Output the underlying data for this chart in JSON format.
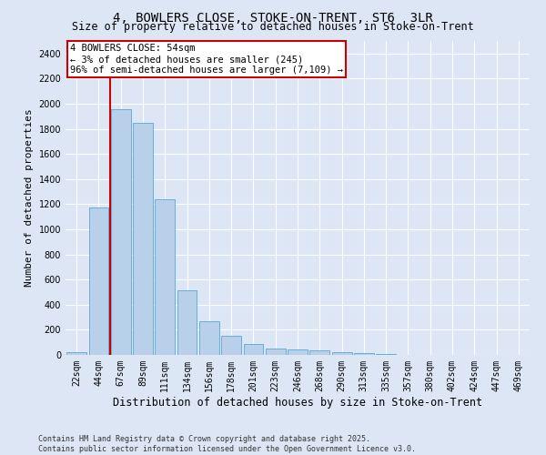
{
  "title": "4, BOWLERS CLOSE, STOKE-ON-TRENT, ST6  3LR",
  "subtitle": "Size of property relative to detached houses in Stoke-on-Trent",
  "xlabel": "Distribution of detached houses by size in Stoke-on-Trent",
  "ylabel": "Number of detached properties",
  "categories": [
    "22sqm",
    "44sqm",
    "67sqm",
    "89sqm",
    "111sqm",
    "134sqm",
    "156sqm",
    "178sqm",
    "201sqm",
    "223sqm",
    "246sqm",
    "268sqm",
    "290sqm",
    "313sqm",
    "335sqm",
    "357sqm",
    "380sqm",
    "402sqm",
    "424sqm",
    "447sqm",
    "469sqm"
  ],
  "values": [
    25,
    1175,
    1960,
    1850,
    1240,
    515,
    270,
    155,
    90,
    50,
    42,
    38,
    20,
    15,
    5,
    3,
    2,
    2,
    2,
    1,
    1
  ],
  "bar_color": "#b8d0ea",
  "bar_edge_color": "#6aaed6",
  "background_color": "#dce6f5",
  "grid_color": "#ffffff",
  "annotation_text": "4 BOWLERS CLOSE: 54sqm\n← 3% of detached houses are smaller (245)\n96% of semi-detached houses are larger (7,109) →",
  "annotation_box_color": "#ffffff",
  "annotation_box_edge": "#cc0000",
  "vline_color": "#cc0000",
  "vline_x": 1.5,
  "ylim": [
    0,
    2500
  ],
  "yticks": [
    0,
    200,
    400,
    600,
    800,
    1000,
    1200,
    1400,
    1600,
    1800,
    2000,
    2200,
    2400
  ],
  "footer": "Contains HM Land Registry data © Crown copyright and database right 2025.\nContains public sector information licensed under the Open Government Licence v3.0.",
  "title_fontsize": 10,
  "subtitle_fontsize": 8.5,
  "xlabel_fontsize": 8.5,
  "ylabel_fontsize": 8,
  "tick_fontsize": 7,
  "annot_fontsize": 7.5,
  "footer_fontsize": 6
}
